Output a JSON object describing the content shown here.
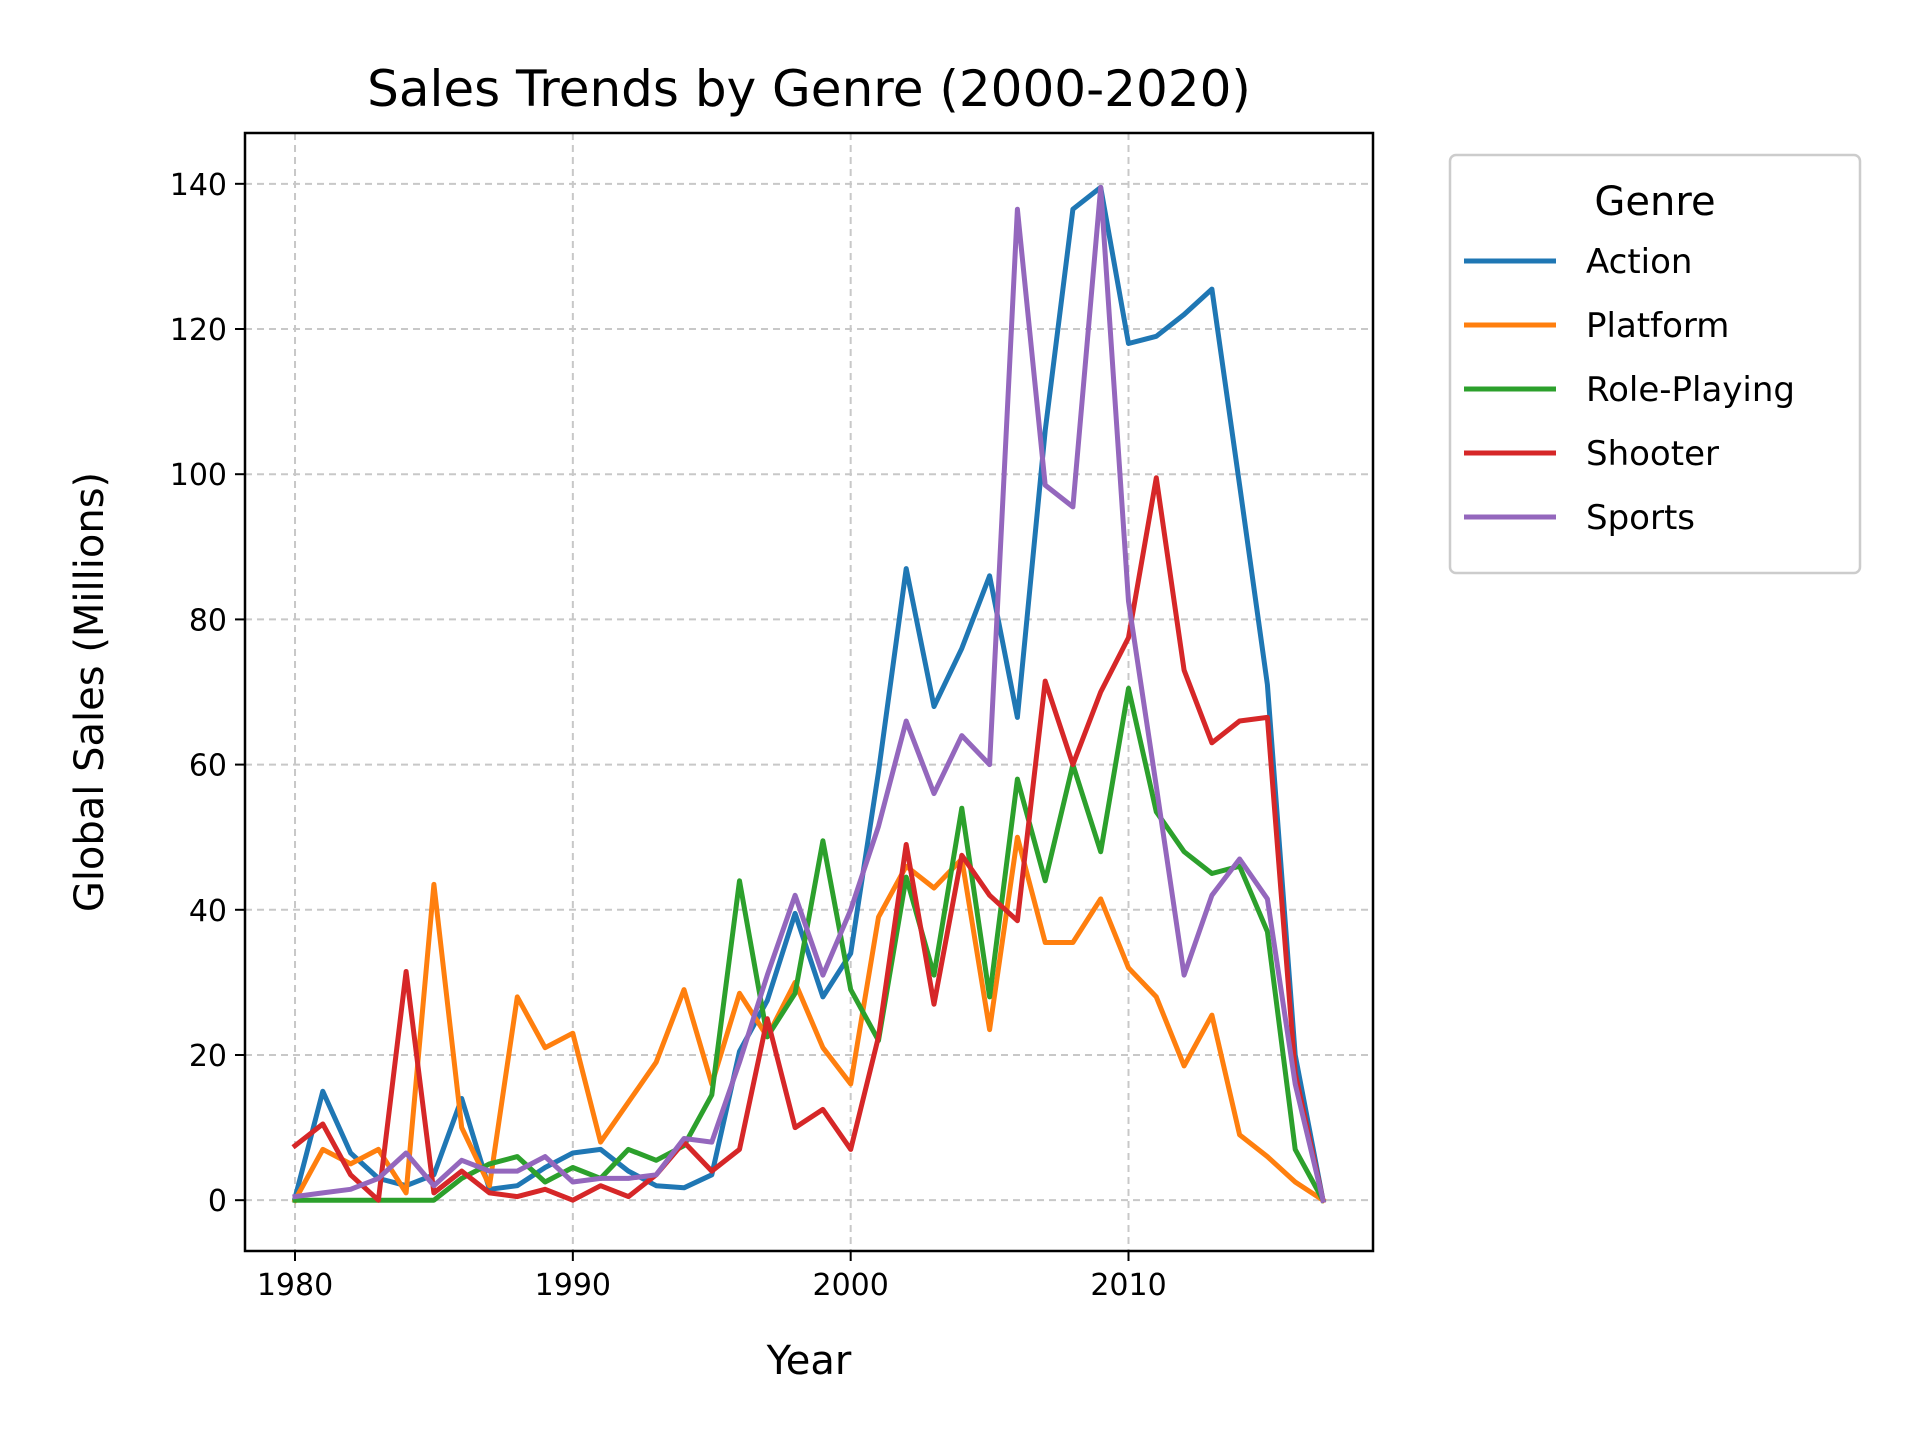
{
  "chart_data": {
    "type": "line",
    "title": "Sales Trends by Genre (2000-2020)",
    "xlabel": "Year",
    "ylabel": "Global Sales (Millions)",
    "xlim": [
      1978.2,
      2018.8
    ],
    "ylim": [
      -7,
      147
    ],
    "xticks": [
      1980,
      1990,
      2000,
      2010
    ],
    "yticks": [
      0,
      20,
      40,
      60,
      80,
      100,
      120,
      140
    ],
    "grid": true,
    "legend": {
      "title": "Genre",
      "placement": "outside-top-right"
    },
    "x": [
      1980,
      1981,
      1982,
      1983,
      1984,
      1985,
      1986,
      1987,
      1988,
      1989,
      1990,
      1991,
      1992,
      1993,
      1994,
      1995,
      1996,
      1997,
      1998,
      1999,
      2000,
      2001,
      2002,
      2003,
      2004,
      2005,
      2006,
      2007,
      2008,
      2009,
      2010,
      2011,
      2012,
      2013,
      2014,
      2015,
      2016,
      2017
    ],
    "series": [
      {
        "name": "Action",
        "color": "#1f77b4",
        "values": [
          0.3,
          15,
          6.5,
          3,
          2,
          3.5,
          14,
          1.5,
          2,
          4.5,
          6.5,
          7,
          4,
          2,
          1.7,
          3.5,
          20.5,
          27.5,
          39.5,
          28,
          34,
          59,
          87,
          68,
          76,
          86,
          66.5,
          106,
          136.5,
          139.5,
          118,
          119,
          122,
          125.5,
          98.5,
          71,
          20,
          0
        ]
      },
      {
        "name": "Platform",
        "color": "#ff7f0e",
        "values": [
          0,
          7,
          5,
          7,
          1,
          43.5,
          10,
          2,
          28,
          21,
          23,
          8,
          13.5,
          19,
          29,
          16,
          28.5,
          22.5,
          30,
          21,
          16,
          39,
          46,
          43,
          47,
          23.5,
          50,
          35.5,
          35.5,
          41.5,
          32,
          28,
          18.5,
          25.5,
          9,
          6,
          2.5,
          0
        ]
      },
      {
        "name": "Role-Playing",
        "color": "#2ca02c",
        "values": [
          0,
          0,
          0,
          0,
          0,
          0,
          3,
          5,
          6,
          2.5,
          4.5,
          3,
          7,
          5.5,
          7.5,
          14.5,
          44,
          22.5,
          28.5,
          49.5,
          29,
          22,
          44.5,
          31,
          54,
          28,
          58,
          44,
          60,
          48,
          70.5,
          53.5,
          48,
          45,
          46,
          37,
          7,
          0
        ]
      },
      {
        "name": "Shooter",
        "color": "#d62728",
        "values": [
          7.5,
          10.5,
          3.5,
          0,
          31.5,
          1,
          4,
          1,
          0.5,
          1.5,
          0,
          2,
          0.5,
          3.5,
          8,
          4,
          7,
          25,
          10,
          12.5,
          7,
          22.5,
          49,
          27,
          47.5,
          42,
          38.5,
          71.5,
          60,
          70,
          77.5,
          99.5,
          73,
          63,
          66,
          66.5,
          17.5,
          0
        ]
      },
      {
        "name": "Sports",
        "color": "#9467bd",
        "values": [
          0.5,
          1,
          1.5,
          3,
          6.5,
          2,
          5.5,
          4,
          4,
          6,
          2.5,
          3,
          3,
          3.5,
          8.5,
          8,
          19,
          31,
          42,
          31,
          40,
          51.5,
          66,
          56,
          64,
          60,
          136.5,
          98.5,
          95.5,
          139.5,
          82.5,
          57,
          31,
          42,
          47,
          41.5,
          16,
          0
        ]
      }
    ]
  }
}
